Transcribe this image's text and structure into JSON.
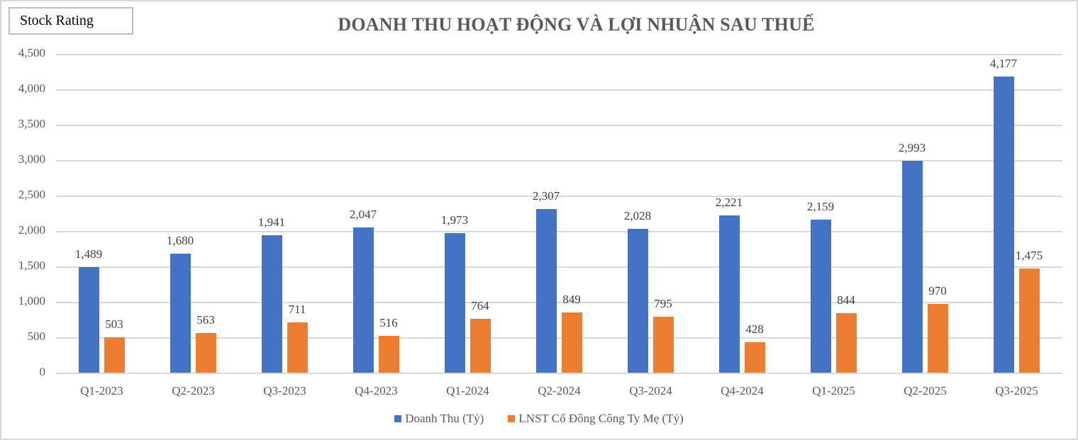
{
  "badge": {
    "label": "Stock Rating"
  },
  "chart_data": {
    "type": "bar",
    "title": "DOANH THU HOẠT ĐỘNG VÀ LỢI NHUẬN SAU THUẾ",
    "xlabel": "",
    "ylabel": "",
    "ylim": [
      0,
      4500
    ],
    "yticks": [
      "0",
      "500",
      "1,000",
      "1,500",
      "2,000",
      "2,500",
      "3,000",
      "3,500",
      "4,000",
      "4,500"
    ],
    "grid": true,
    "legend_position": "bottom",
    "categories": [
      "Q1-2023",
      "Q2-2023",
      "Q3-2023",
      "Q4-2023",
      "Q1-2024",
      "Q2-2024",
      "Q3-2024",
      "Q4-2024",
      "Q1-2025",
      "Q2-2025",
      "Q3-2025"
    ],
    "series": [
      {
        "name": "Doanh Thu (Tỷ)",
        "color": "#4472c4",
        "values": [
          1489,
          1680,
          1941,
          2047,
          1973,
          2307,
          2028,
          2221,
          2159,
          2993,
          4177
        ],
        "labels": [
          "1,489",
          "1,680",
          "1,941",
          "2,047",
          "1,973",
          "2,307",
          "2,028",
          "2,221",
          "2,159",
          "2,993",
          "4,177"
        ]
      },
      {
        "name": "LNST Cổ Đông Công Ty Mẹ (Tỷ)",
        "color": "#ed7d31",
        "values": [
          503,
          563,
          711,
          516,
          764,
          849,
          795,
          428,
          844,
          970,
          1475
        ],
        "labels": [
          "503",
          "563",
          "711",
          "516",
          "764",
          "849",
          "795",
          "428",
          "844",
          "970",
          "1,475"
        ]
      }
    ]
  }
}
